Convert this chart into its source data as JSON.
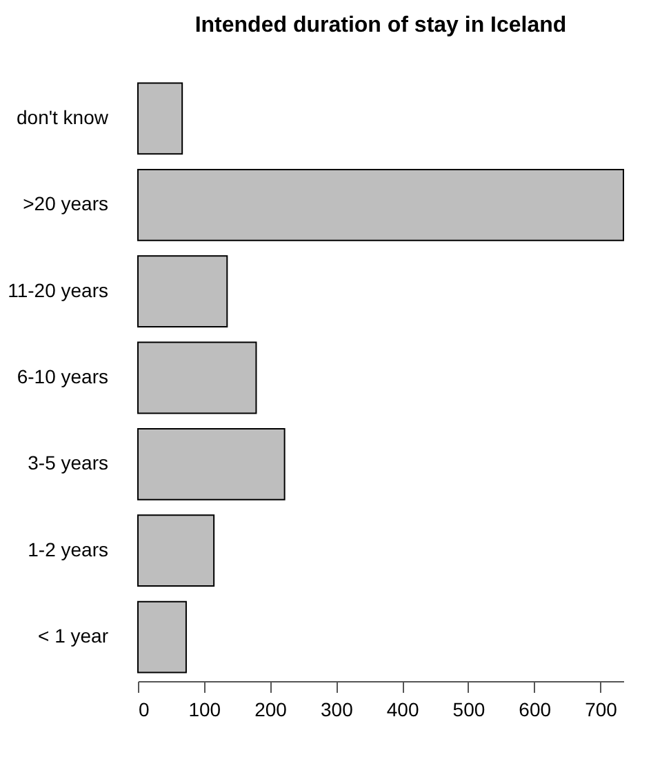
{
  "chart_data": {
    "type": "bar",
    "orientation": "horizontal",
    "title": "Intended duration of stay in Iceland",
    "categories": [
      "don't know",
      ">20 years",
      "11-20 years",
      "6-10 years",
      "3-5 years",
      "1-2 years",
      "< 1 year"
    ],
    "values": [
      67,
      735,
      135,
      179,
      222,
      115,
      73
    ],
    "color": "#bebebe",
    "xlim": [
      0,
      735
    ],
    "xticks": [
      0,
      100,
      200,
      300,
      400,
      500,
      600,
      700
    ],
    "grid": false
  }
}
